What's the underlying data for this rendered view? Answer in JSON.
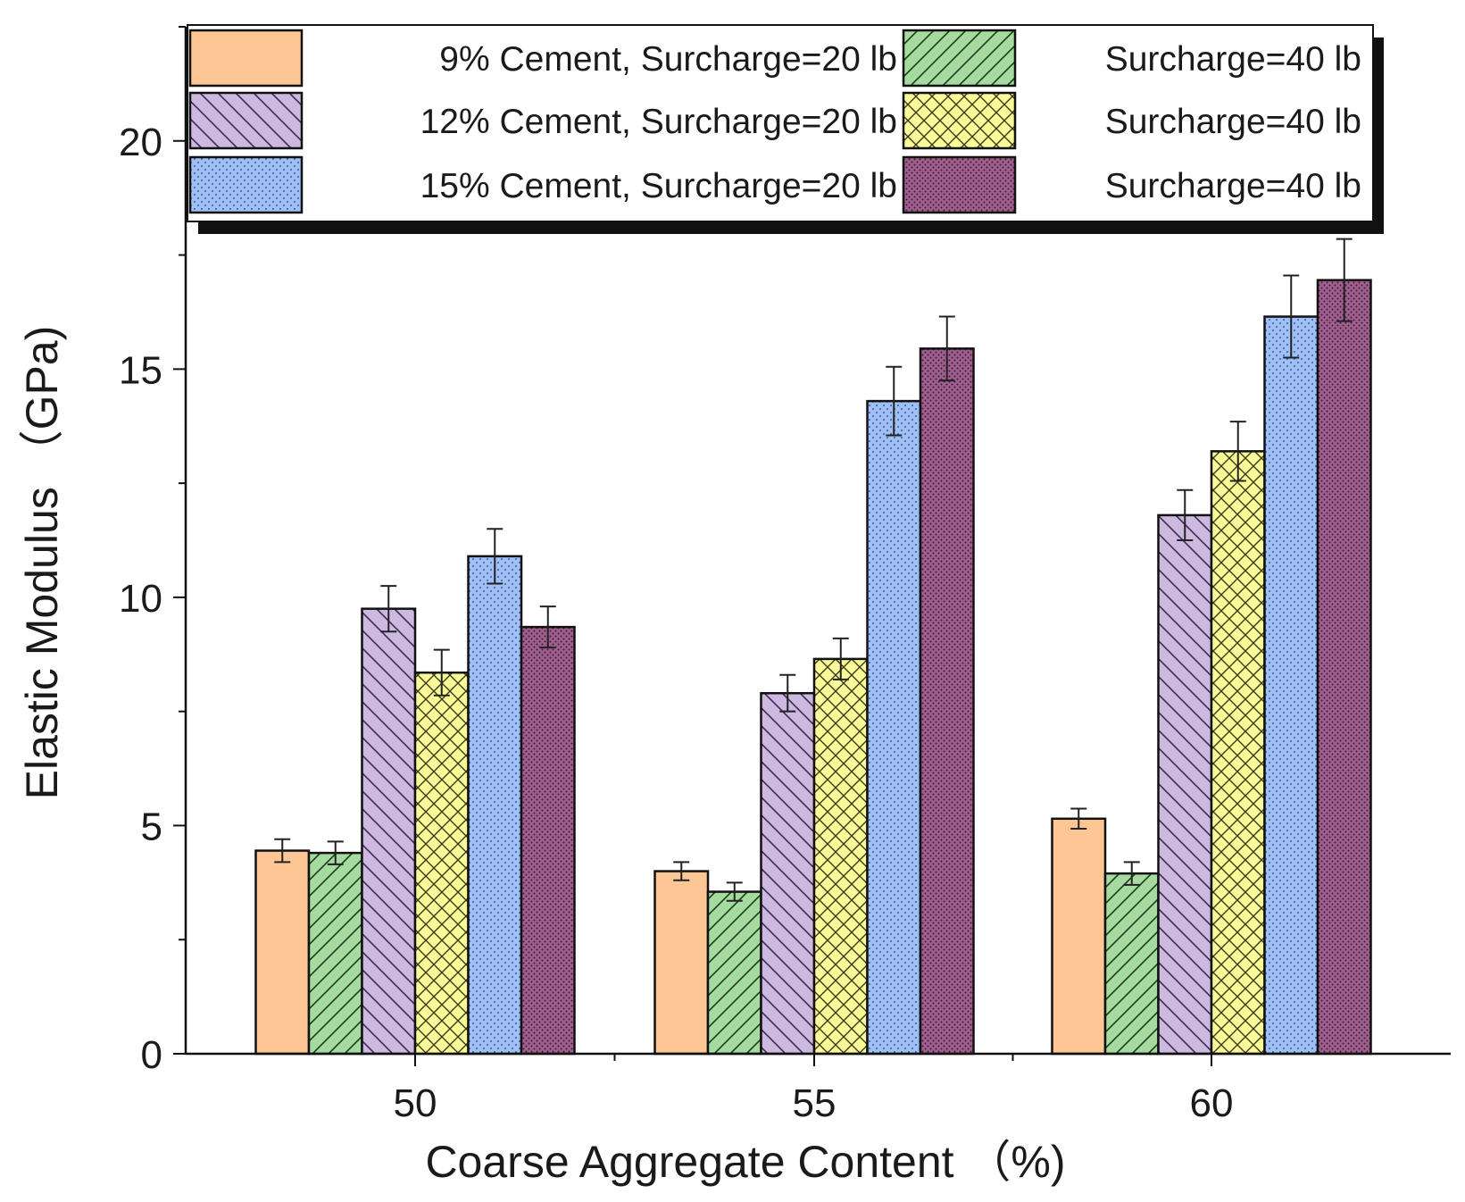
{
  "chart_data": {
    "type": "bar",
    "title": "",
    "xlabel": "Coarse Aggregate Content （%)",
    "ylabel": "Elastic Modulus （GPa)",
    "ylim": [
      0,
      22.5
    ],
    "yticks": [
      "0",
      "5",
      "10",
      "15",
      "20"
    ],
    "categories": [
      "50",
      "55",
      "60"
    ],
    "legend_position": "top",
    "series": [
      {
        "name": "9% Cement, Surcharge=20 lb",
        "color": "#fdc795",
        "pattern": "solid",
        "values": [
          4.45,
          4.0,
          5.15
        ],
        "errors": [
          0.25,
          0.2,
          0.22
        ]
      },
      {
        "name": "Surcharge=40 lb",
        "color": "#a6dba0",
        "pattern": "hatch-forward",
        "values": [
          4.4,
          3.55,
          3.95
        ],
        "errors": [
          0.25,
          0.2,
          0.25
        ]
      },
      {
        "name": "12% Cement, Surcharge=20 lb",
        "color": "#cdb8e0",
        "pattern": "hatch-back",
        "values": [
          9.75,
          7.9,
          11.8
        ],
        "errors": [
          0.5,
          0.4,
          0.55
        ]
      },
      {
        "name": "Surcharge=40 lb",
        "color": "#fafa99",
        "pattern": "crosshatch",
        "values": [
          8.35,
          8.65,
          13.2
        ],
        "errors": [
          0.5,
          0.45,
          0.65
        ]
      },
      {
        "name": "15% Cement, Surcharge=20 lb",
        "color": "#9fbff7",
        "pattern": "dots",
        "values": [
          10.9,
          14.3,
          16.15
        ],
        "errors": [
          0.6,
          0.75,
          0.9
        ]
      },
      {
        "name": "Surcharge=40 lb",
        "color": "#a0608f",
        "pattern": "fine-dots",
        "values": [
          9.35,
          15.45,
          16.95
        ],
        "errors": [
          0.45,
          0.7,
          0.9
        ]
      }
    ]
  }
}
